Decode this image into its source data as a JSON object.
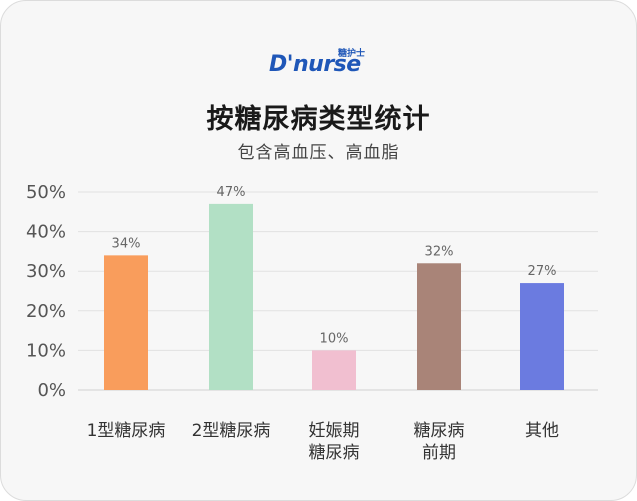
{
  "logo": {
    "main": "D'nurse",
    "sub": "糖护士"
  },
  "title": "按糖尿病类型统计",
  "subtitle": "包含高血压、高血脂",
  "colors": {
    "background": "#f7f7f7",
    "grid": "#e2e2e2",
    "brand": "#1f57b8"
  },
  "chart_data": {
    "type": "bar",
    "title": "按糖尿病类型统计",
    "subtitle": "包含高血压、高血脂",
    "categories": [
      [
        "1型糖尿病"
      ],
      [
        "2型糖尿病"
      ],
      [
        "妊娠期",
        "糖尿病"
      ],
      [
        "糖尿病",
        "前期"
      ],
      [
        "其他"
      ]
    ],
    "values": [
      34,
      47,
      10,
      32,
      27
    ],
    "value_labels": [
      "34%",
      "47%",
      "10%",
      "32%",
      "27%"
    ],
    "bar_colors": [
      "#f99d5c",
      "#b2e0c5",
      "#f1bfd0",
      "#a98478",
      "#6b7be0"
    ],
    "yticks": [
      "0%",
      "10%",
      "20%",
      "30%",
      "40%",
      "50%"
    ],
    "ylim": [
      0,
      50
    ],
    "grid": true,
    "xlabel": "",
    "ylabel": ""
  }
}
